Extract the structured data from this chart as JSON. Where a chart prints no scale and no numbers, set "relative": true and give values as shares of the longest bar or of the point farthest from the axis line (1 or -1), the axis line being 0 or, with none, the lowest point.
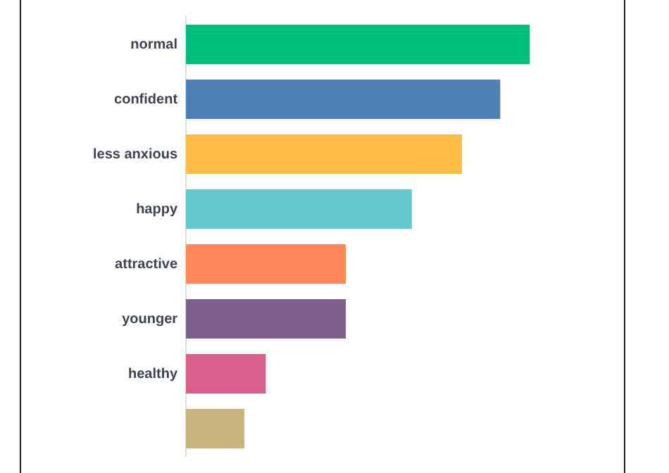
{
  "chart_data": {
    "type": "bar",
    "orientation": "horizontal",
    "relative": true,
    "categories": [
      "normal",
      "confident",
      "less anxious",
      "happy",
      "attractive",
      "younger",
      "healthy",
      null
    ],
    "values": [
      1,
      0.914,
      0.803,
      0.657,
      0.465,
      0.465,
      0.232,
      0.17
    ],
    "colors": [
      "#00bf7a",
      "#4e7fb5",
      "#fdbc44",
      "#63c9cf",
      "#fe8a5b",
      "#7e5f8c",
      "#d95f8d",
      "#c8b580"
    ]
  }
}
